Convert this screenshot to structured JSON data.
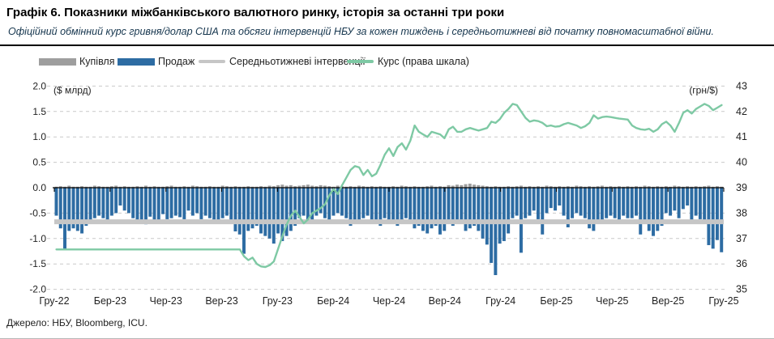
{
  "header": {
    "title": "Графік 6. Показники міжбанківського валютного ринку, історія за останні три роки",
    "subtitle": "Офіційний обмінний курс гривня/долар США та обсяги інтервенцій НБУ за кожен тиждень і середньотижневі від початку повномасштабної війни."
  },
  "legend": [
    {
      "label": "Купівля",
      "type": "bar",
      "color": "#9e9e9e"
    },
    {
      "label": "Продаж",
      "type": "bar",
      "color": "#2d6ca3"
    },
    {
      "label": "Середньотижневі інтервенції",
      "type": "line",
      "color": "#c6c6c6"
    },
    {
      "label": "Курс (права шкала)",
      "type": "line",
      "color": "#7ec9a4"
    }
  ],
  "footer": {
    "source": "Джерело: НБУ, Bloomberg, ICU."
  },
  "chart_data": {
    "type": "bar",
    "title": "Показники міжбанківського валютного ринку",
    "left_axis": {
      "caption": "($ млрд)",
      "ticks": [
        "2.0",
        "1.5",
        "1.0",
        "0.5",
        "0.0",
        "-0.5",
        "-1.0",
        "-1.5",
        "-2.0"
      ],
      "range": [
        -2.0,
        2.0
      ]
    },
    "right_axis": {
      "caption": "(грн/$)",
      "ticks": [
        "43",
        "42",
        "41",
        "40",
        "39",
        "38",
        "37",
        "36",
        "35"
      ],
      "range": [
        35,
        43
      ]
    },
    "categories": [
      "Гру-22",
      "Бер-23",
      "Чер-23",
      "Вер-23",
      "Гру-23",
      "Бер-24",
      "Чер-24",
      "Вер-24",
      "Гру-24",
      "Бер-25",
      "Чер-25",
      "Вер-25",
      "Гру-25"
    ],
    "grid": "dashed",
    "legend_position": "top",
    "series": [
      {
        "name": "Купівля",
        "type": "bar",
        "axis": "left",
        "color": "#9e9e9e",
        "values": [
          0.02,
          0.03,
          0.02,
          0.04,
          0.02,
          0.02,
          0.03,
          0.02,
          0.02,
          0.04,
          0.03,
          0.02,
          0.02,
          0.03,
          0.04,
          0.02,
          0.03,
          0.02,
          0.02,
          0.03,
          0.02,
          0.04,
          0.02,
          0.03,
          0.02,
          0.02,
          0.03,
          0.04,
          0.02,
          0.02,
          0.03,
          0.02,
          0.04,
          0.03,
          0.02,
          0.02,
          0.03,
          0.02,
          0.02,
          0.04,
          0.03,
          0.02,
          0.03,
          0.02,
          0.02,
          0.03,
          0.02,
          0.02,
          0.03,
          0.02,
          0.04,
          0.03,
          0.05,
          0.06,
          0.04,
          0.05,
          0.03,
          0.04,
          0.05,
          0.06,
          0.04,
          0.03,
          0.05,
          0.04,
          0.03,
          0.02,
          0.04,
          0.03,
          0.02,
          0.03,
          0.02,
          0.04,
          0.03,
          0.02,
          0.03,
          0.02,
          0.03,
          0.02,
          0.02,
          0.03,
          0.02,
          0.04,
          0.03,
          0.02,
          0.03,
          0.02,
          0.02,
          0.03,
          0.04,
          0.02,
          0.03,
          0.02,
          0.05,
          0.04,
          0.06,
          0.05,
          0.07,
          0.08,
          0.06,
          0.05,
          0.04,
          0.03,
          0.02,
          0.03,
          0.02,
          0.02,
          0.03,
          0.02,
          0.03,
          0.04,
          0.02,
          0.03,
          0.02,
          0.03,
          0.02,
          0.04,
          0.03,
          0.02,
          0.03,
          0.02,
          0.03,
          0.02,
          0.04,
          0.03,
          0.02,
          0.03,
          0.02,
          0.03,
          0.04,
          0.02,
          0.03,
          0.02,
          0.03,
          0.02,
          0.03,
          0.02,
          0.03,
          0.02,
          0.04,
          0.03,
          0.02,
          0.03,
          0.02,
          0.03,
          0.02,
          0.04,
          0.03,
          0.02,
          0.03,
          0.02,
          0.03,
          0.02,
          0.03,
          0.04,
          0.02,
          0.03,
          0.02
        ]
      },
      {
        "name": "Продаж",
        "type": "bar",
        "axis": "left",
        "color": "#2d6ca3",
        "values": [
          -0.55,
          -0.8,
          -1.2,
          -0.85,
          -0.8,
          -0.85,
          -0.9,
          -0.75,
          -0.7,
          -0.6,
          -0.55,
          -0.6,
          -0.65,
          -0.55,
          -0.5,
          -0.35,
          -0.45,
          -0.5,
          -0.6,
          -0.65,
          -0.7,
          -0.72,
          -0.57,
          -0.66,
          -0.68,
          -0.52,
          -0.62,
          -0.6,
          -0.55,
          -0.58,
          -0.62,
          -0.45,
          -0.55,
          -0.5,
          -0.62,
          -0.55,
          -0.6,
          -0.65,
          -0.7,
          -0.6,
          -0.55,
          -0.71,
          -0.86,
          -0.92,
          -1.3,
          -0.85,
          -0.8,
          -0.75,
          -0.9,
          -0.95,
          -1.0,
          -1.1,
          -0.9,
          -1.05,
          -0.95,
          -0.85,
          -0.75,
          -0.6,
          -0.55,
          -0.65,
          -0.7,
          -0.55,
          -0.5,
          -0.6,
          -0.65,
          -0.55,
          -0.5,
          -0.55,
          -0.6,
          -0.75,
          -0.65,
          -0.7,
          -0.6,
          -0.55,
          -0.65,
          -0.7,
          -0.75,
          -0.6,
          -0.65,
          -0.7,
          -0.75,
          -0.65,
          -0.6,
          -0.7,
          -0.8,
          -0.75,
          -0.85,
          -0.9,
          -0.8,
          -0.75,
          -0.92,
          -0.85,
          -0.7,
          -0.75,
          -0.65,
          -0.7,
          -0.85,
          -0.8,
          -0.75,
          -0.85,
          -1.0,
          -1.12,
          -1.48,
          -1.72,
          -1.1,
          -1.05,
          -0.9,
          -0.6,
          -0.55,
          -1.28,
          -0.6,
          -0.55,
          -0.45,
          -0.62,
          -0.92,
          -0.5,
          -0.4,
          -0.45,
          -0.35,
          -0.55,
          -0.78,
          -0.6,
          -0.5,
          -0.55,
          -0.6,
          -0.8,
          -0.85,
          -0.65,
          -0.7,
          -0.6,
          -0.55,
          -0.6,
          -0.65,
          -0.55,
          -0.6,
          -0.6,
          -0.55,
          -0.92,
          -0.7,
          -0.85,
          -0.95,
          -0.85,
          -0.75,
          -0.5,
          -0.55,
          -0.45,
          -0.6,
          -0.42,
          -0.35,
          -0.7,
          -0.55,
          -0.62,
          -0.65,
          -1.13,
          -1.2,
          -1.03,
          -1.27
        ]
      },
      {
        "name": "Середньотижневі інтервенції",
        "type": "line",
        "axis": "left",
        "color": "#c6c6c6",
        "width": 6,
        "value": -0.67
      },
      {
        "name": "Курс (права шкала)",
        "type": "line",
        "axis": "right",
        "color": "#7ec9a4",
        "width": 2.4,
        "values": [
          36.57,
          36.57,
          36.57,
          36.57,
          36.57,
          36.57,
          36.57,
          36.57,
          36.57,
          36.57,
          36.57,
          36.57,
          36.57,
          36.57,
          36.57,
          36.57,
          36.57,
          36.57,
          36.57,
          36.57,
          36.57,
          36.57,
          36.57,
          36.57,
          36.57,
          36.57,
          36.57,
          36.57,
          36.57,
          36.57,
          36.57,
          36.57,
          36.57,
          36.57,
          36.57,
          36.57,
          36.57,
          36.57,
          36.57,
          36.57,
          36.57,
          36.57,
          36.57,
          36.57,
          36.3,
          36.15,
          36.25,
          36.0,
          35.9,
          35.88,
          35.95,
          36.1,
          36.6,
          37.1,
          37.55,
          37.9,
          38.1,
          37.85,
          37.6,
          37.75,
          38.0,
          38.1,
          38.2,
          38.35,
          38.7,
          38.95,
          38.75,
          39.1,
          39.4,
          39.7,
          39.85,
          39.8,
          39.5,
          39.7,
          39.45,
          39.55,
          39.9,
          40.3,
          40.55,
          40.25,
          40.6,
          40.75,
          40.5,
          40.85,
          41.45,
          41.2,
          41.1,
          41.0,
          41.2,
          41.15,
          41.1,
          40.95,
          41.3,
          41.4,
          41.2,
          41.2,
          41.3,
          41.35,
          41.3,
          41.25,
          41.3,
          41.35,
          41.6,
          41.55,
          41.7,
          41.95,
          42.1,
          42.3,
          42.25,
          42.0,
          41.75,
          41.6,
          41.65,
          41.62,
          41.55,
          41.42,
          41.45,
          41.4,
          41.42,
          41.5,
          41.55,
          41.5,
          41.45,
          41.35,
          41.42,
          41.55,
          41.85,
          41.72,
          41.78,
          41.8,
          41.78,
          41.75,
          41.72,
          41.7,
          41.68,
          41.45,
          41.35,
          41.3,
          41.28,
          41.32,
          41.2,
          41.3,
          41.5,
          41.6,
          41.45,
          41.2,
          41.55,
          41.95,
          42.05,
          41.92,
          42.1,
          42.2,
          42.3,
          42.22,
          42.05,
          42.15,
          42.25
        ]
      }
    ]
  }
}
